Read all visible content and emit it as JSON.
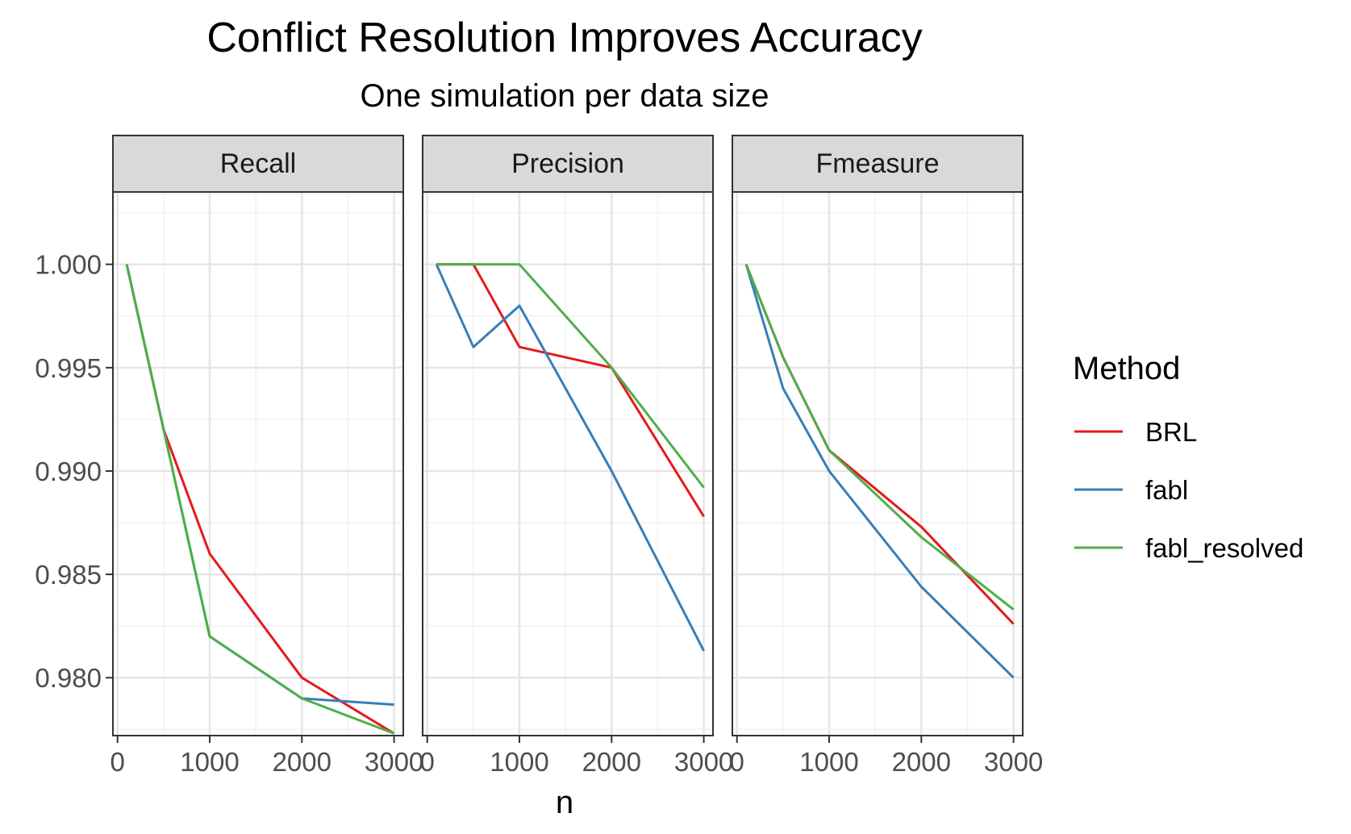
{
  "chart_data": {
    "type": "line",
    "title": "Conflict Resolution Improves Accuracy",
    "subtitle": "One simulation per data size",
    "xlabel": "n",
    "ylabel": "",
    "xlim": [
      -50,
      3100
    ],
    "ylim": [
      0.9772,
      1.0035
    ],
    "x_ticks": [
      0,
      1000,
      2000,
      3000
    ],
    "x_tick_labels": [
      "0",
      "1000",
      "2000",
      "3000"
    ],
    "y_ticks": [
      0.98,
      0.985,
      0.99,
      0.995,
      1.0
    ],
    "y_tick_labels": [
      "0.980",
      "0.985",
      "0.990",
      "0.995",
      "1.000"
    ],
    "grid": true,
    "legend": {
      "title": "Method",
      "position": "right"
    },
    "x": [
      100,
      500,
      1000,
      2000,
      3000
    ],
    "series_colors": {
      "BRL": "#e41a1c",
      "fabl": "#377eb8",
      "fabl_resolved": "#4daf4a"
    },
    "panels": [
      {
        "strip": "Recall",
        "series": [
          {
            "name": "BRL",
            "values": [
              1.0,
              0.992,
              0.986,
              0.98,
              0.9773
            ]
          },
          {
            "name": "fabl",
            "values": [
              1.0,
              0.992,
              0.982,
              0.979,
              0.9787
            ]
          },
          {
            "name": "fabl_resolved",
            "values": [
              1.0,
              0.992,
              0.982,
              0.979,
              0.9773
            ]
          }
        ]
      },
      {
        "strip": "Precision",
        "series": [
          {
            "name": "BRL",
            "values": [
              1.0,
              1.0,
              0.996,
              0.995,
              0.9878
            ]
          },
          {
            "name": "fabl",
            "values": [
              1.0,
              0.996,
              0.998,
              0.99,
              0.9813
            ]
          },
          {
            "name": "fabl_resolved",
            "values": [
              1.0,
              1.0,
              1.0,
              0.995,
              0.9892
            ]
          }
        ]
      },
      {
        "strip": "Fmeasure",
        "series": [
          {
            "name": "BRL",
            "values": [
              1.0,
              0.9955,
              0.991,
              0.9873,
              0.9826
            ]
          },
          {
            "name": "fabl",
            "values": [
              1.0,
              0.994,
              0.99,
              0.9844,
              0.98
            ]
          },
          {
            "name": "fabl_resolved",
            "values": [
              1.0,
              0.9955,
              0.991,
              0.9868,
              0.9833
            ]
          }
        ]
      }
    ]
  }
}
